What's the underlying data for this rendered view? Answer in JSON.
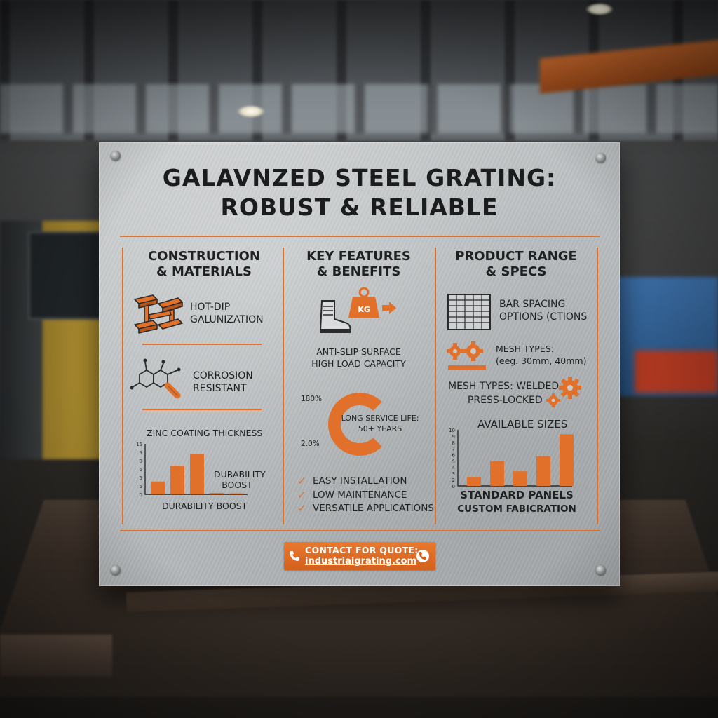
{
  "title_line1": "GALAVNZED STEEL GRATING:",
  "title_line2": "ROBUST & RELIABLE",
  "colors": {
    "accent": "#e0702a",
    "plate": "#bfc2c4",
    "text": "#1c1d1e"
  },
  "columns": [
    {
      "heading_line1": "CONSTRUCTION",
      "heading_line2": "& MATERIALS",
      "items": [
        {
          "icon": "steel-beams-icon",
          "line1": "HOT-DIP",
          "line2": "GALUNIZATION"
        },
        {
          "icon": "molecule-icon",
          "line1": "CORROSION",
          "line2": "RESISTANT"
        }
      ],
      "chart_title": "ZINC COATING THICKNESS",
      "chart_side_label_line1": "DURABILITY",
      "chart_side_label_line2": "BOOST",
      "chart_caption": "DURABILITY BOOST"
    },
    {
      "heading_line1": "KEY FEATURES",
      "heading_line2": "& BENEFITS",
      "weight_label": "KG",
      "feature_line1": "ANTI-SLIP SURFACE",
      "feature_line2": "HIGH LOAD CAPACITY",
      "gauge_label_top": "180%",
      "gauge_label_bottom": "2.0%",
      "gauge_text_line1": "LONG SERVICE LIFE:",
      "gauge_text_line2": "50+ YEARS",
      "checklist": [
        "EASY INSTALLATION",
        "LOW MAINTENANCE",
        "VERSATILE APPLICATIONS"
      ]
    },
    {
      "heading_line1": "PRODUCT RANGE",
      "heading_line2": "& SPECS",
      "bar_spacing_line1": "BAR SPACING",
      "bar_spacing_line2": "OPTIONS (CTIONS",
      "mesh_types_line1": "MESH TYPES:",
      "mesh_types_line2": "(eeg. 30mm, 40mm)",
      "mesh_types2_line1": "MESH TYPES: WELDED,",
      "mesh_types2_line2": "PRESS-LOCKED",
      "chart_title": "AVAILABLE SIZES",
      "caption_line1": "STANDARD PANELS",
      "caption_line2": "CUSTOM FABICRATION"
    }
  ],
  "contact": {
    "line1": "CONTACT FOR QUOTE:",
    "line2": "industriaigrating.com"
  },
  "chart_data": [
    {
      "type": "bar",
      "title": "ZINC COATING THICKNESS",
      "xlabel": "DURABILITY BOOST",
      "ylabel": "",
      "ytick_labels": [
        "15",
        "9",
        "8",
        "6",
        "5",
        "5",
        "0"
      ],
      "values": [
        3.8,
        8.5,
        12,
        0.4,
        0.3
      ],
      "ylim": [
        0,
        15
      ],
      "color": "#e0702a"
    },
    {
      "type": "bar",
      "title": "AVAILABLE SIZES",
      "xlabel": "STANDARD PANELS",
      "ylabel": "",
      "ytick_labels": [
        "10",
        "9",
        "8",
        "7",
        "6",
        "5",
        "4",
        "3",
        "2",
        "0"
      ],
      "values": [
        1.6,
        4.4,
        2.6,
        5.3,
        9.2
      ],
      "ylim": [
        0,
        10
      ],
      "color": "#e0702a"
    },
    {
      "type": "pie",
      "title": "LONG SERVICE LIFE: 50+ YEARS",
      "labels": [
        "180%",
        "2.0%"
      ],
      "values": [
        75,
        25
      ],
      "color": "#e0702a"
    }
  ]
}
